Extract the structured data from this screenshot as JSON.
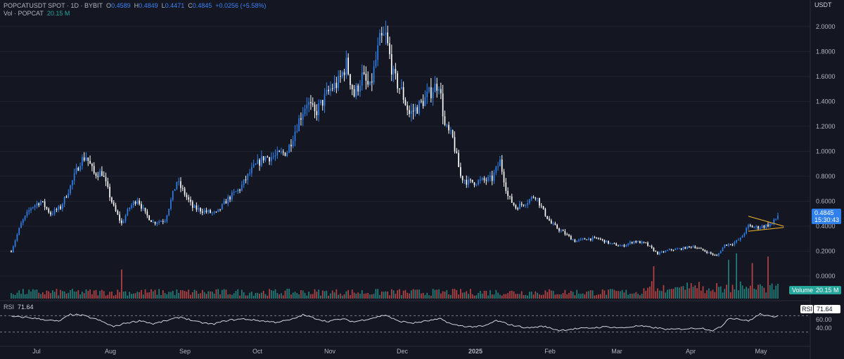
{
  "header": {
    "symbol": "POPCATUSDT SPOT · 1D · BYBIT",
    "open_label": "O",
    "open": "0.4589",
    "high_label": "H",
    "high": "0.4849",
    "low_label": "L",
    "low": "0.4471",
    "close_label": "C",
    "close": "0.4845",
    "change": "+0.0256 (+5.58%)",
    "vol_label": "Vol · POPCAT",
    "vol_value": "20.15 M",
    "unit": "USDT"
  },
  "badges": {
    "last_price": "0.4845",
    "countdown": "15:30:43",
    "volume_label": "Volume",
    "volume_value": "20.15 M",
    "rsi_label": "RSI",
    "rsi_value": "71.64"
  },
  "rsi_panel": {
    "title": "RSI",
    "value": "71.64",
    "ticks": [
      "60.00",
      "40.00"
    ]
  },
  "chart_data": {
    "type": "candlestick",
    "price_axis": {
      "ticks": [
        "2.0000",
        "1.8000",
        "1.6000",
        "1.4000",
        "1.2000",
        "1.0000",
        "0.8000",
        "0.6000",
        "0.4000",
        "0.2000",
        "0.0000"
      ],
      "range": [
        -0.18,
        2.1
      ]
    },
    "time_axis": {
      "ticks": [
        "Jul",
        "Aug",
        "Sep",
        "Oct",
        "Nov",
        "Dec",
        "2025",
        "Feb",
        "Mar",
        "Apr",
        "May"
      ],
      "start_date": "2024-06-01",
      "end_date": "2025-05-16"
    },
    "colors": {
      "up": "#2f80ed",
      "down": "#ffffff",
      "vol_up": "#26a69a",
      "vol_down": "#ef5350",
      "rsi": "#d1d4dc",
      "wedge": "#f0b429"
    },
    "anchors": [
      [
        0,
        0.2
      ],
      [
        5,
        0.42
      ],
      [
        10,
        0.55
      ],
      [
        15,
        0.6
      ],
      [
        20,
        0.5
      ],
      [
        25,
        0.55
      ],
      [
        30,
        0.72
      ],
      [
        35,
        0.92
      ],
      [
        38,
        0.96
      ],
      [
        42,
        0.82
      ],
      [
        46,
        0.83
      ],
      [
        52,
        0.55
      ],
      [
        56,
        0.42
      ],
      [
        60,
        0.55
      ],
      [
        64,
        0.62
      ],
      [
        68,
        0.5
      ],
      [
        72,
        0.43
      ],
      [
        78,
        0.45
      ],
      [
        84,
        0.76
      ],
      [
        88,
        0.66
      ],
      [
        92,
        0.55
      ],
      [
        98,
        0.52
      ],
      [
        104,
        0.5
      ],
      [
        110,
        0.62
      ],
      [
        116,
        0.7
      ],
      [
        122,
        0.85
      ],
      [
        128,
        0.95
      ],
      [
        134,
        0.96
      ],
      [
        140,
        1.0
      ],
      [
        146,
        1.25
      ],
      [
        150,
        1.4
      ],
      [
        154,
        1.3
      ],
      [
        158,
        1.4
      ],
      [
        162,
        1.5
      ],
      [
        166,
        1.55
      ],
      [
        170,
        1.7
      ],
      [
        174,
        1.45
      ],
      [
        178,
        1.6
      ],
      [
        182,
        1.5
      ],
      [
        187,
        1.88
      ],
      [
        190,
        1.92
      ],
      [
        194,
        1.6
      ],
      [
        198,
        1.48
      ],
      [
        202,
        1.3
      ],
      [
        206,
        1.35
      ],
      [
        210,
        1.42
      ],
      [
        214,
        1.5
      ],
      [
        217,
        1.55
      ],
      [
        220,
        1.2
      ],
      [
        224,
        1.1
      ],
      [
        228,
        0.8
      ],
      [
        232,
        0.75
      ],
      [
        238,
        0.76
      ],
      [
        244,
        0.78
      ],
      [
        248,
        0.92
      ],
      [
        252,
        0.64
      ],
      [
        256,
        0.55
      ],
      [
        262,
        0.6
      ],
      [
        266,
        0.65
      ],
      [
        270,
        0.52
      ],
      [
        274,
        0.42
      ],
      [
        280,
        0.35
      ],
      [
        286,
        0.28
      ],
      [
        292,
        0.3
      ],
      [
        298,
        0.3
      ],
      [
        304,
        0.26
      ],
      [
        310,
        0.24
      ],
      [
        316,
        0.28
      ],
      [
        322,
        0.26
      ],
      [
        328,
        0.18
      ],
      [
        334,
        0.21
      ],
      [
        340,
        0.22
      ],
      [
        346,
        0.24
      ],
      [
        352,
        0.2
      ],
      [
        358,
        0.16
      ],
      [
        362,
        0.25
      ],
      [
        366,
        0.26
      ],
      [
        370,
        0.3
      ],
      [
        374,
        0.4
      ],
      [
        378,
        0.39
      ],
      [
        382,
        0.4
      ],
      [
        386,
        0.42
      ],
      [
        388,
        0.46
      ],
      [
        389,
        0.4845
      ]
    ],
    "volume_spikes": [
      [
        56,
        18
      ],
      [
        326,
        20
      ],
      [
        364,
        24
      ],
      [
        368,
        28
      ],
      [
        376,
        22
      ],
      [
        384,
        26
      ],
      [
        388,
        8
      ]
    ],
    "rsi_anchors": [
      [
        0,
        68
      ],
      [
        8,
        66
      ],
      [
        16,
        61
      ],
      [
        24,
        56
      ],
      [
        30,
        73
      ],
      [
        36,
        71
      ],
      [
        44,
        60
      ],
      [
        52,
        43
      ],
      [
        58,
        52
      ],
      [
        66,
        58
      ],
      [
        72,
        50
      ],
      [
        78,
        57
      ],
      [
        86,
        67
      ],
      [
        94,
        55
      ],
      [
        102,
        49
      ],
      [
        110,
        59
      ],
      [
        118,
        62
      ],
      [
        126,
        58
      ],
      [
        134,
        54
      ],
      [
        142,
        60
      ],
      [
        148,
        72
      ],
      [
        154,
        64
      ],
      [
        160,
        56
      ],
      [
        168,
        62
      ],
      [
        174,
        55
      ],
      [
        182,
        63
      ],
      [
        190,
        72
      ],
      [
        196,
        57
      ],
      [
        204,
        52
      ],
      [
        212,
        58
      ],
      [
        218,
        62
      ],
      [
        224,
        48
      ],
      [
        232,
        43
      ],
      [
        240,
        44
      ],
      [
        246,
        58
      ],
      [
        254,
        47
      ],
      [
        262,
        40
      ],
      [
        270,
        44
      ],
      [
        278,
        34
      ],
      [
        286,
        38
      ],
      [
        294,
        40
      ],
      [
        302,
        43
      ],
      [
        310,
        40
      ],
      [
        318,
        45
      ],
      [
        326,
        41
      ],
      [
        334,
        36
      ],
      [
        342,
        38
      ],
      [
        350,
        40
      ],
      [
        356,
        34
      ],
      [
        360,
        42
      ],
      [
        364,
        64
      ],
      [
        368,
        63
      ],
      [
        374,
        57
      ],
      [
        380,
        74
      ],
      [
        384,
        69
      ],
      [
        387,
        66
      ],
      [
        389,
        71.64
      ]
    ],
    "rsi_range": [
      0,
      100
    ],
    "rsi_levels": [
      70,
      30
    ],
    "wedge": {
      "upper": [
        [
          374,
          0.48
        ],
        [
          392,
          0.4
        ]
      ],
      "lower": [
        [
          374,
          0.36
        ],
        [
          392,
          0.39
        ]
      ]
    },
    "last": {
      "close": 0.4845
    }
  }
}
